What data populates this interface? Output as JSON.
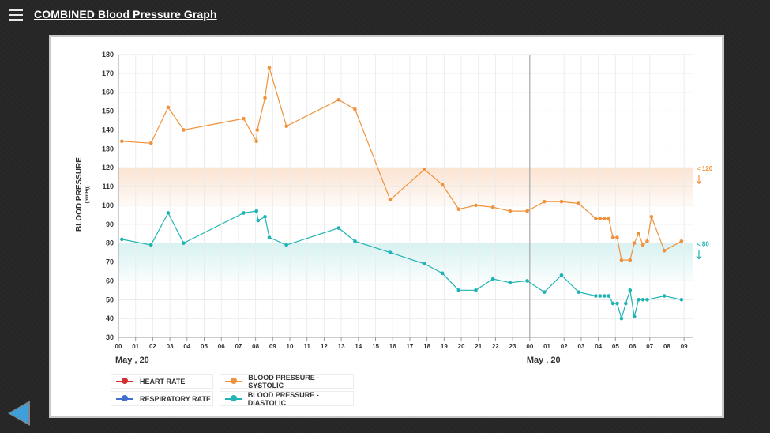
{
  "header": {
    "title": "COMBINED Blood Pressure Graph",
    "menu_icon": "hamburger-icon"
  },
  "legend": [
    {
      "label": "HEART RATE",
      "color": "#d32f2f"
    },
    {
      "label": "RESPIRATORY RATE",
      "color": "#3f6fcf"
    },
    {
      "label": "BLOOD PRESSURE - SYSTOLIC",
      "color": "#f0923c"
    },
    {
      "label": "BLOOD PRESSURE - DIASTOLIC",
      "color": "#1fb3b3"
    }
  ],
  "nav": {
    "back_icon": "back-arrow-icon",
    "back_color": "#3f9fd8"
  },
  "chart_data": {
    "type": "line",
    "ylabel": "BLOOD PRESSURE",
    "yunit": "(mmHg)",
    "ylim": [
      30,
      180
    ],
    "yticks": [
      30,
      40,
      50,
      60,
      70,
      80,
      90,
      100,
      110,
      120,
      130,
      140,
      150,
      160,
      170,
      180
    ],
    "xlim": [
      0,
      33.5
    ],
    "xticks": [
      {
        "x": 0,
        "label": "00"
      },
      {
        "x": 1,
        "label": "01"
      },
      {
        "x": 2,
        "label": "02"
      },
      {
        "x": 3,
        "label": "03"
      },
      {
        "x": 4,
        "label": "04"
      },
      {
        "x": 5,
        "label": "05"
      },
      {
        "x": 6,
        "label": "06"
      },
      {
        "x": 7,
        "label": "07"
      },
      {
        "x": 8,
        "label": "08"
      },
      {
        "x": 9,
        "label": "09"
      },
      {
        "x": 10,
        "label": "10"
      },
      {
        "x": 11,
        "label": "11"
      },
      {
        "x": 12,
        "label": "12"
      },
      {
        "x": 13,
        "label": "13"
      },
      {
        "x": 14,
        "label": "14"
      },
      {
        "x": 15,
        "label": "15"
      },
      {
        "x": 16,
        "label": "16"
      },
      {
        "x": 17,
        "label": "17"
      },
      {
        "x": 18,
        "label": "18"
      },
      {
        "x": 19,
        "label": "19"
      },
      {
        "x": 20,
        "label": "20"
      },
      {
        "x": 21,
        "label": "21"
      },
      {
        "x": 22,
        "label": "22"
      },
      {
        "x": 23,
        "label": "23"
      },
      {
        "x": 24,
        "label": "00"
      },
      {
        "x": 25,
        "label": "01"
      },
      {
        "x": 26,
        "label": "02"
      },
      {
        "x": 27,
        "label": "03"
      },
      {
        "x": 28,
        "label": "04"
      },
      {
        "x": 29,
        "label": "05"
      },
      {
        "x": 30,
        "label": "06"
      },
      {
        "x": 31,
        "label": "07"
      },
      {
        "x": 32,
        "label": "08"
      },
      {
        "x": 33,
        "label": "09"
      }
    ],
    "day_labels": [
      {
        "x": 0,
        "label": "May     , 20"
      },
      {
        "x": 24,
        "label": "May     , 20"
      }
    ],
    "day_divider_x": 24,
    "bands": [
      {
        "from": 100,
        "to": 120,
        "color": "#fbe0cc",
        "label": "< 120",
        "label_color": "#f0923c"
      },
      {
        "from": 60,
        "to": 80,
        "color": "#d4f0f0",
        "label": "< 80",
        "label_color": "#1fb3b3"
      }
    ],
    "series": [
      {
        "name": "BLOOD PRESSURE - SYSTOLIC",
        "color": "#f0923c",
        "points": [
          [
            0.2,
            134
          ],
          [
            1.9,
            133
          ],
          [
            2.9,
            152
          ],
          [
            3.8,
            140
          ],
          [
            7.3,
            146
          ],
          [
            8.05,
            134
          ],
          [
            8.1,
            140
          ],
          [
            8.55,
            157
          ],
          [
            8.8,
            173
          ],
          [
            9.8,
            142
          ],
          [
            12.85,
            156
          ],
          [
            13.8,
            151
          ],
          [
            15.85,
            103
          ],
          [
            17.85,
            119
          ],
          [
            18.9,
            111
          ],
          [
            19.85,
            98
          ],
          [
            20.85,
            100
          ],
          [
            21.85,
            99
          ],
          [
            22.85,
            97
          ],
          [
            23.85,
            97
          ],
          [
            24.85,
            102
          ],
          [
            25.85,
            102
          ],
          [
            26.85,
            101
          ],
          [
            27.85,
            93
          ],
          [
            28.1,
            93
          ],
          [
            28.35,
            93
          ],
          [
            28.6,
            93
          ],
          [
            28.85,
            83
          ],
          [
            29.1,
            83
          ],
          [
            29.35,
            71
          ],
          [
            29.85,
            71
          ],
          [
            30.1,
            80
          ],
          [
            30.35,
            85
          ],
          [
            30.6,
            79
          ],
          [
            30.85,
            81
          ],
          [
            31.1,
            94
          ],
          [
            31.85,
            76
          ],
          [
            32.85,
            81
          ]
        ]
      },
      {
        "name": "BLOOD PRESSURE - DIASTOLIC",
        "color": "#1fb3b3",
        "points": [
          [
            0.2,
            82
          ],
          [
            1.9,
            79
          ],
          [
            2.9,
            96
          ],
          [
            3.8,
            80
          ],
          [
            7.3,
            96
          ],
          [
            8.05,
            97
          ],
          [
            8.15,
            92
          ],
          [
            8.55,
            94
          ],
          [
            8.8,
            83
          ],
          [
            9.8,
            79
          ],
          [
            12.85,
            88
          ],
          [
            13.8,
            81
          ],
          [
            15.85,
            75
          ],
          [
            17.85,
            69
          ],
          [
            18.9,
            64
          ],
          [
            19.85,
            55
          ],
          [
            20.85,
            55
          ],
          [
            21.85,
            61
          ],
          [
            22.85,
            59
          ],
          [
            23.85,
            60
          ],
          [
            24.85,
            54
          ],
          [
            25.85,
            63
          ],
          [
            26.85,
            54
          ],
          [
            27.85,
            52
          ],
          [
            28.1,
            52
          ],
          [
            28.35,
            52
          ],
          [
            28.6,
            52
          ],
          [
            28.85,
            48
          ],
          [
            29.1,
            48
          ],
          [
            29.35,
            40
          ],
          [
            29.6,
            48
          ],
          [
            29.85,
            55
          ],
          [
            30.1,
            41
          ],
          [
            30.35,
            50
          ],
          [
            30.6,
            50
          ],
          [
            30.85,
            50
          ],
          [
            31.85,
            52
          ],
          [
            32.85,
            50
          ]
        ]
      }
    ],
    "grid": true
  }
}
